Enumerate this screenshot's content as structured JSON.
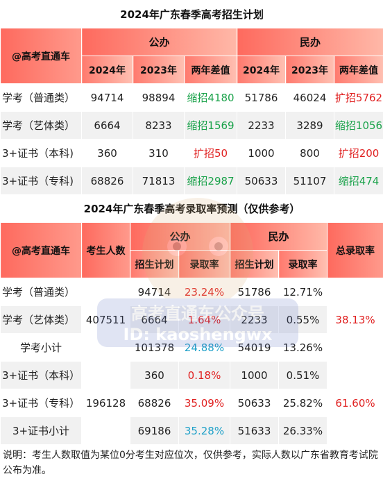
{
  "table1": {
    "title": "2024年广东春季高考招生计划",
    "corner": "@高考直通车",
    "group_public": "公办",
    "group_private": "民办",
    "sub_headers": [
      "2024年",
      "2023年",
      "两年差值",
      "2024年",
      "2023年",
      "两年差值"
    ],
    "rows": [
      {
        "label": "学考（普通类）",
        "v": [
          "94714",
          "98894",
          "缩招4180",
          "51786",
          "46024",
          "扩招5762"
        ],
        "diff_colors": [
          "green",
          "red"
        ]
      },
      {
        "label": "学考（艺体类）",
        "v": [
          "6664",
          "8233",
          "缩招1569",
          "2233",
          "3289",
          "缩招1056"
        ],
        "diff_colors": [
          "green",
          "green"
        ]
      },
      {
        "label": "3+证书（本科)",
        "v": [
          "360",
          "310",
          "扩招50",
          "1000",
          "800",
          "扩招200"
        ],
        "diff_colors": [
          "red",
          "red"
        ]
      },
      {
        "label": "3+证书（专科)",
        "v": [
          "68826",
          "71813",
          "缩招2987",
          "50633",
          "51107",
          "缩招474"
        ],
        "diff_colors": [
          "green",
          "green"
        ]
      }
    ]
  },
  "table2": {
    "title": "2024年广东春季高考录取率预测（仅供参考）",
    "corner": "@高考直通车",
    "col_candidates": "考生人数",
    "group_public": "公办",
    "group_private": "民办",
    "col_total": "总录取率",
    "sub_headers": [
      "招生计划",
      "录取率",
      "招生计划",
      "录取率"
    ],
    "rows": [
      {
        "label": "学考（普通类）",
        "plan_pub": "94714",
        "rate_pub": "23.24%",
        "plan_pri": "51786",
        "rate_pri": "12.71%"
      },
      {
        "label": "学考（艺体类）",
        "plan_pub": "6664",
        "rate_pub": "1.64%",
        "plan_pri": "2233",
        "rate_pri": "0.55%"
      },
      {
        "label": "学考小计",
        "plan_pub": "101378",
        "rate_pub": "24.88%",
        "plan_pri": "54019",
        "rate_pri": "13.26%"
      },
      {
        "label": "3+证书（本科）",
        "plan_pub": "360",
        "rate_pub": "0.18%",
        "plan_pri": "1000",
        "rate_pri": "0.51%"
      },
      {
        "label": "3+证书（专科）",
        "plan_pub": "68826",
        "rate_pub": "35.09%",
        "plan_pri": "50633",
        "rate_pri": "25.82%"
      },
      {
        "label": "3+证书小计",
        "plan_pub": "69186",
        "rate_pub": "35.28%",
        "plan_pri": "51633",
        "rate_pri": "26.33%"
      }
    ],
    "candidates_xuekao": "407511",
    "candidates_zhengshu": "196128",
    "total_xuekao": "38.13%",
    "total_zhengshu": "61.60%"
  },
  "note": "说明：考生人数取值为某位0分考生对应位次，仅供参考，实际人数以广东省教育考试院公布为准。",
  "watermark": {
    "text1": "高考直通车公众号",
    "text2": "ID: kaoshengwx"
  }
}
